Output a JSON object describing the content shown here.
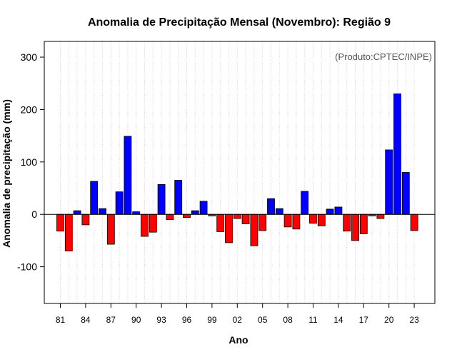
{
  "chart_data": {
    "type": "bar",
    "title": "Anomalia de Precipitação Mensal (Novembro): Região 9",
    "xlabel": "Ano",
    "ylabel": "Anomalia de precipitação (mm)",
    "credit": "(Produto:CPTEC/INPE)",
    "ylim": [
      -170,
      330
    ],
    "yticks": [
      -100,
      0,
      100,
      200,
      300
    ],
    "xtick_labels": [
      "81",
      "84",
      "87",
      "90",
      "93",
      "96",
      "99",
      "02",
      "05",
      "08",
      "11",
      "14",
      "17",
      "20",
      "23"
    ],
    "categories": [
      "1981",
      "1982",
      "1983",
      "1984",
      "1985",
      "1986",
      "1987",
      "1988",
      "1989",
      "1990",
      "1991",
      "1992",
      "1993",
      "1994",
      "1995",
      "1996",
      "1997",
      "1998",
      "1999",
      "2000",
      "2001",
      "2002",
      "2003",
      "2004",
      "2005",
      "2006",
      "2007",
      "2008",
      "2009",
      "2010",
      "2011",
      "2012",
      "2013",
      "2014",
      "2015",
      "2016",
      "2017",
      "2018",
      "2019",
      "2020",
      "2021",
      "2022",
      "2023"
    ],
    "values": [
      -32,
      -70,
      7,
      -20,
      63,
      11,
      -57,
      43,
      149,
      5,
      -42,
      -34,
      57,
      -10,
      65,
      -6,
      7,
      25,
      -3,
      -33,
      -54,
      -8,
      -18,
      -60,
      -31,
      30,
      11,
      -24,
      -28,
      44,
      -17,
      -22,
      10,
      14,
      -32,
      -50,
      -37,
      -3,
      -8,
      123,
      230,
      80,
      -31
    ],
    "colors": {
      "positive": "#0000ff",
      "negative": "#ff0000",
      "frame": "#000000",
      "grid": "#d3d3d3"
    },
    "grid": true
  }
}
